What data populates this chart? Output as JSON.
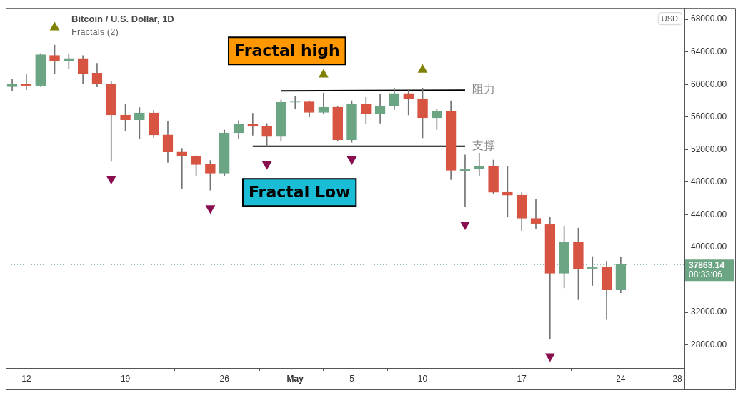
{
  "chart_data": {
    "type": "candlestick",
    "title": "Bitcoin / U.S. Dollar, 1D",
    "subtitle": "Fractals (2)",
    "x": [
      "--04-11",
      "--04-12",
      "--04-13",
      "--04-14",
      "--04-15",
      "--04-16",
      "--04-17",
      "--04-18",
      "--04-19",
      "--04-20",
      "--04-21",
      "--04-22",
      "--04-23",
      "--04-24",
      "--04-25",
      "--04-26",
      "--04-27",
      "--04-28",
      "--04-29",
      "--04-30",
      "--05-01",
      "--05-02",
      "--05-03",
      "--05-04",
      "--05-05",
      "--05-06",
      "--05-07",
      "--05-08",
      "--05-09",
      "--05-10",
      "--05-11",
      "--05-12",
      "--05-13",
      "--05-14",
      "--05-15",
      "--05-16",
      "--05-17",
      "--05-18",
      "--05-19",
      "--05-20",
      "--05-21",
      "--05-22",
      "--05-23",
      "--05-24"
    ],
    "ohlc": [
      [
        59710,
        60700,
        59200,
        60000
      ],
      [
        60000,
        61200,
        59350,
        59800
      ],
      [
        59800,
        63800,
        59750,
        63650
      ],
      [
        63570,
        64850,
        61300,
        62930
      ],
      [
        62930,
        63800,
        61950,
        63200
      ],
      [
        63200,
        63550,
        60050,
        61350
      ],
      [
        61400,
        62600,
        59700,
        60070
      ],
      [
        60070,
        60430,
        50550,
        56240
      ],
      [
        56240,
        57600,
        54250,
        55650
      ],
      [
        55650,
        57150,
        53300,
        56500
      ],
      [
        56500,
        56800,
        53500,
        53800
      ],
      [
        53800,
        55500,
        50400,
        51700
      ],
      [
        51700,
        52150,
        47150,
        51200
      ],
      [
        51200,
        51250,
        48750,
        50150
      ],
      [
        50150,
        50650,
        47000,
        49100
      ],
      [
        49100,
        54400,
        48750,
        54050
      ],
      [
        54050,
        55550,
        53350,
        55100
      ],
      [
        55100,
        56450,
        53750,
        54850
      ],
      [
        54850,
        55200,
        52350,
        53600
      ],
      [
        53600,
        58100,
        53000,
        57800
      ],
      [
        57800,
        58500,
        57050,
        57850
      ],
      [
        57850,
        58000,
        56000,
        56550
      ],
      [
        56550,
        58950,
        56450,
        57200
      ],
      [
        57200,
        57300,
        53050,
        53200
      ],
      [
        53200,
        58000,
        52900,
        57550
      ],
      [
        57550,
        58400,
        55150,
        56400
      ],
      [
        56400,
        58750,
        55250,
        57350
      ],
      [
        57350,
        59550,
        56900,
        58900
      ],
      [
        58900,
        59350,
        56250,
        58250
      ],
      [
        58250,
        59550,
        53450,
        55900
      ],
      [
        55900,
        56950,
        54450,
        56750
      ],
      [
        56750,
        58000,
        48300,
        49450
      ],
      [
        49400,
        51350,
        45000,
        49600
      ],
      [
        49650,
        51550,
        48800,
        49900
      ],
      [
        49900,
        50700,
        46550,
        46750
      ],
      [
        46750,
        49900,
        43700,
        46400
      ],
      [
        46400,
        46700,
        42050,
        43550
      ],
      [
        43550,
        45900,
        42300,
        42850
      ],
      [
        42850,
        43650,
        28750,
        36800
      ],
      [
        36800,
        42600,
        35000,
        40600
      ],
      [
        40600,
        42350,
        33550,
        37350
      ],
      [
        37350,
        38850,
        35300,
        37550
      ],
      [
        37550,
        38300,
        31100,
        34750
      ],
      [
        34750,
        38750,
        34400,
        37863.14
      ]
    ],
    "colors": [
      "#6ba583",
      "#d75442",
      "#6ba583",
      "#d75442",
      "#6ba583",
      "#d75442",
      "#d75442",
      "#d75442",
      "#d75442",
      "#6ba583",
      "#d75442",
      "#d75442",
      "#d75442",
      "#d75442",
      "#d75442",
      "#6ba583",
      "#6ba583",
      "#d75442",
      "#d75442",
      "#6ba583",
      "#6ba583",
      "#d75442",
      "#6ba583",
      "#d75442",
      "#6ba583",
      "#d75442",
      "#6ba583",
      "#6ba583",
      "#d75442",
      "#d75442",
      "#6ba583",
      "#d75442",
      "#6ba583",
      "#6ba583",
      "#d75442",
      "#d75442",
      "#d75442",
      "#d75442",
      "#d75442",
      "#6ba583",
      "#d75442",
      "#6ba583",
      "#d75442",
      "#6ba583"
    ],
    "series": [
      {
        "type": "scatter",
        "color": "#808000",
        "marker": "triangle",
        "x": [
          "--04-14",
          "--05-03",
          "--05-10"
        ],
        "values": [
          67000,
          61200,
          61800
        ]
      },
      {
        "type": "scatter",
        "color": "#880e4f",
        "marker": "triangle-down",
        "x": [
          "--04-18",
          "--04-25",
          "--04-29",
          "--05-05",
          "--05-13",
          "--05-19"
        ],
        "values": [
          48400,
          44800,
          50200,
          50800,
          42800,
          26600
        ]
      },
      {
        "type": "line",
        "name": "阻力",
        "color": "#000000",
        "x": [
          "--04-30",
          "--05-13"
        ],
        "values": [
          59200,
          59300
        ]
      },
      {
        "type": "line",
        "name": "支撑",
        "color": "#000000",
        "x": [
          "--04-28",
          "--05-13"
        ],
        "values": [
          52400,
          52400
        ]
      }
    ],
    "xlim": [
      "--04-10T13:00",
      "--05-28T12:00"
    ],
    "xticks": [
      {
        "value": "--04-12",
        "label": "12"
      },
      {
        "value": "--04-19",
        "label": "19"
      },
      {
        "value": "--04-26",
        "label": "26"
      },
      {
        "value": "--05-01",
        "label": "May"
      },
      {
        "value": "--05-05",
        "label": "5"
      },
      {
        "value": "--05-10",
        "label": "10"
      },
      {
        "value": "--05-17",
        "label": "17"
      },
      {
        "value": "--05-24",
        "label": "24"
      },
      {
        "value": "--05-28",
        "label": "28"
      }
    ],
    "ylim": [
      25150,
      69400
    ],
    "yticks": [
      {
        "value": 68000,
        "label": "68000.00"
      },
      {
        "value": 64000,
        "label": "64000.00"
      },
      {
        "value": 60000,
        "label": "60000.00"
      },
      {
        "value": 56000,
        "label": "56000.00"
      },
      {
        "value": 52000,
        "label": "52000.00"
      },
      {
        "value": 48000,
        "label": "48000.00"
      },
      {
        "value": 44000,
        "label": "44000.00"
      },
      {
        "value": 40000,
        "label": "40000.00"
      },
      {
        "value": 36000,
        "label": null
      },
      {
        "value": 32000,
        "label": "32000.00"
      },
      {
        "value": 28000,
        "label": "28000.00"
      }
    ],
    "ref_lines": [
      {
        "axis": "y",
        "value": 37863.14,
        "label": "37863.14\n08:33:06",
        "color": "#6ba583",
        "line_style": "dotted"
      }
    ],
    "annotations": [
      "Fractal high",
      "Fractal Low",
      "USD"
    ]
  }
}
